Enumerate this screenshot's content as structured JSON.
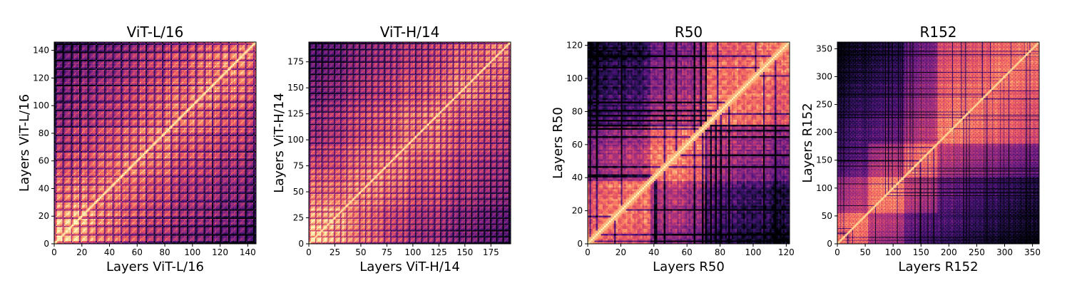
{
  "chart_data": [
    {
      "type": "heatmap",
      "title": "ViT-L/16",
      "xlabel": "Layers ViT-L/16",
      "ylabel": "Layers ViT-L/16",
      "n_layers": 146,
      "xlim": [
        0,
        146
      ],
      "ylim": [
        0,
        146
      ],
      "ticks": [
        0,
        20,
        40,
        60,
        80,
        100,
        120,
        140
      ],
      "colormap": "magma",
      "value_range": [
        0,
        1
      ],
      "pattern": "transformer",
      "period": 6,
      "seed": 11
    },
    {
      "type": "heatmap",
      "title": "ViT-H/14",
      "xlabel": "Layers ViT-H/14",
      "ylabel": "Layers ViT-H/14",
      "n_layers": 194,
      "xlim": [
        0,
        194
      ],
      "ylim": [
        0,
        194
      ],
      "ticks": [
        0,
        25,
        50,
        75,
        100,
        125,
        150,
        175
      ],
      "colormap": "magma",
      "value_range": [
        0,
        1
      ],
      "pattern": "transformer",
      "period": 6,
      "seed": 23
    },
    {
      "type": "heatmap",
      "title": "R50",
      "xlabel": "Layers R50",
      "ylabel": "Layers R50",
      "n_layers": 122,
      "xlim": [
        0,
        122
      ],
      "ylim": [
        0,
        122
      ],
      "ticks": [
        0,
        20,
        40,
        60,
        80,
        100,
        120
      ],
      "colormap": "magma",
      "value_range": [
        0,
        1
      ],
      "pattern": "resnet",
      "stage_bounds": [
        0,
        38,
        72,
        122
      ],
      "seed": 37
    },
    {
      "type": "heatmap",
      "title": "R152",
      "xlabel": "Layers R152",
      "ylabel": "Layers R152",
      "n_layers": 362,
      "xlim": [
        0,
        362
      ],
      "ylim": [
        0,
        362
      ],
      "ticks": [
        0,
        50,
        100,
        150,
        200,
        250,
        300,
        350
      ],
      "colormap": "magma",
      "value_range": [
        0,
        1
      ],
      "pattern": "resnet",
      "stage_bounds": [
        0,
        55,
        120,
        180,
        362
      ],
      "seed": 53
    }
  ],
  "colors": {
    "magma_stops": [
      "#000004",
      "#1c1044",
      "#4f127b",
      "#812581",
      "#b5367a",
      "#e55064",
      "#fb8761",
      "#fec287",
      "#fcfdbf"
    ]
  }
}
